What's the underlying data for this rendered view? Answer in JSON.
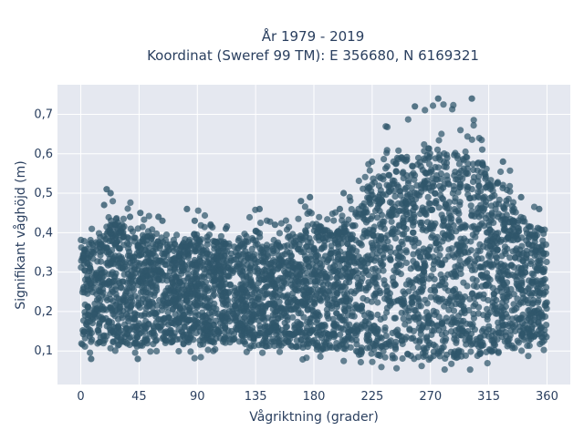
{
  "chart_data": {
    "type": "scatter",
    "title_lines": [
      "År 1979 - 2019",
      "Koordinat (Sweref 99 TM): E 356680, N 6169321"
    ],
    "xlabel": "Vågriktning (grader)",
    "ylabel": "Signifikant våghöjd (m)",
    "xlim": [
      -18,
      378
    ],
    "ylim": [
      0.015,
      0.775
    ],
    "xticks": [
      0,
      45,
      90,
      135,
      180,
      225,
      270,
      315,
      360
    ],
    "xtick_labels": [
      "0",
      "45",
      "90",
      "135",
      "180",
      "225",
      "270",
      "315",
      "360"
    ],
    "yticks": [
      0.1,
      0.2,
      0.3,
      0.4,
      0.5,
      0.6,
      0.7
    ],
    "ytick_labels": [
      "0,1",
      "0,2",
      "0,3",
      "0,4",
      "0,5",
      "0,6",
      "0,7"
    ],
    "grid": true,
    "legend": "none",
    "colors": {
      "marker": "#2f566b",
      "plot_background": "#e5e8f0",
      "grid": "#ffffff",
      "text": "#2a3f5f"
    },
    "x_binned": [
      0,
      15,
      30,
      45,
      60,
      75,
      90,
      105,
      120,
      135,
      150,
      165,
      180,
      195,
      210,
      225,
      240,
      255,
      270,
      285,
      300,
      315,
      330,
      345,
      360
    ],
    "y_upper_envelope": [
      0.4,
      0.44,
      0.51,
      0.45,
      0.44,
      0.41,
      0.46,
      0.43,
      0.41,
      0.46,
      0.42,
      0.45,
      0.49,
      0.45,
      0.5,
      0.64,
      0.7,
      0.71,
      0.74,
      0.72,
      0.74,
      0.66,
      0.58,
      0.48,
      0.46
    ],
    "y_lower_envelope": [
      0.08,
      0.09,
      0.09,
      0.08,
      0.09,
      0.09,
      0.08,
      0.09,
      0.09,
      0.08,
      0.08,
      0.08,
      0.07,
      0.07,
      0.07,
      0.06,
      0.05,
      0.05,
      0.05,
      0.05,
      0.05,
      0.06,
      0.07,
      0.08,
      0.09
    ],
    "outliers": [
      {
        "x": 20,
        "y": 0.51
      },
      {
        "x": 23,
        "y": 0.5
      },
      {
        "x": 18,
        "y": 0.47
      },
      {
        "x": 38,
        "y": 0.44
      },
      {
        "x": 46,
        "y": 0.45
      },
      {
        "x": 60,
        "y": 0.44
      },
      {
        "x": 63,
        "y": 0.43
      },
      {
        "x": 82,
        "y": 0.46
      },
      {
        "x": 88,
        "y": 0.43
      },
      {
        "x": 112,
        "y": 0.41
      },
      {
        "x": 138,
        "y": 0.46
      },
      {
        "x": 150,
        "y": 0.42
      },
      {
        "x": 170,
        "y": 0.48
      },
      {
        "x": 177,
        "y": 0.49
      },
      {
        "x": 200,
        "y": 0.46
      },
      {
        "x": 203,
        "y": 0.5
      },
      {
        "x": 258,
        "y": 0.72
      },
      {
        "x": 276,
        "y": 0.74
      },
      {
        "x": 302,
        "y": 0.74
      },
      {
        "x": 326,
        "y": 0.58
      },
      {
        "x": 340,
        "y": 0.49
      },
      {
        "x": 354,
        "y": 0.46
      },
      {
        "x": 44,
        "y": 0.08
      },
      {
        "x": 8,
        "y": 0.08
      }
    ]
  }
}
